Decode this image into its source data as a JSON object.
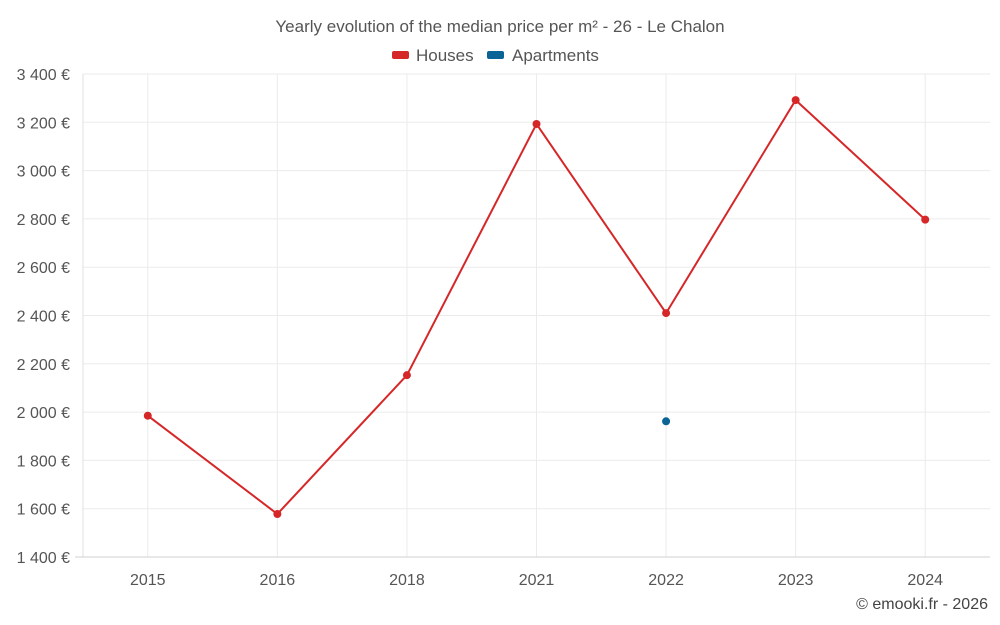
{
  "chart_data": {
    "type": "line",
    "title": "Yearly evolution of the median price per m² - 26 - Le Chalon",
    "categories": [
      "2015",
      "2016",
      "2018",
      "2021",
      "2022",
      "2023",
      "2024"
    ],
    "series": [
      {
        "name": "Houses",
        "color": "#d62728",
        "values": [
          1985,
          1578,
          2153,
          3193,
          2410,
          3292,
          2797
        ]
      },
      {
        "name": "Apartments",
        "color": "#0a6496",
        "values": [
          null,
          null,
          null,
          null,
          1962,
          null,
          null
        ]
      }
    ],
    "ylim": [
      1400,
      3400
    ],
    "yticks": [
      1400,
      1600,
      1800,
      2000,
      2200,
      2400,
      2600,
      2800,
      3000,
      3200,
      3400
    ],
    "ytick_labels": [
      "1 400 €",
      "1 600 €",
      "1 800 €",
      "2 000 €",
      "2 200 €",
      "2 400 €",
      "2 600 €",
      "2 800 €",
      "3 000 €",
      "3 200 €",
      "3 400 €"
    ],
    "xlabel": "",
    "ylabel": "",
    "grid": true,
    "legend_position": "top-center"
  },
  "credit": "© emooki.fr - 2026"
}
